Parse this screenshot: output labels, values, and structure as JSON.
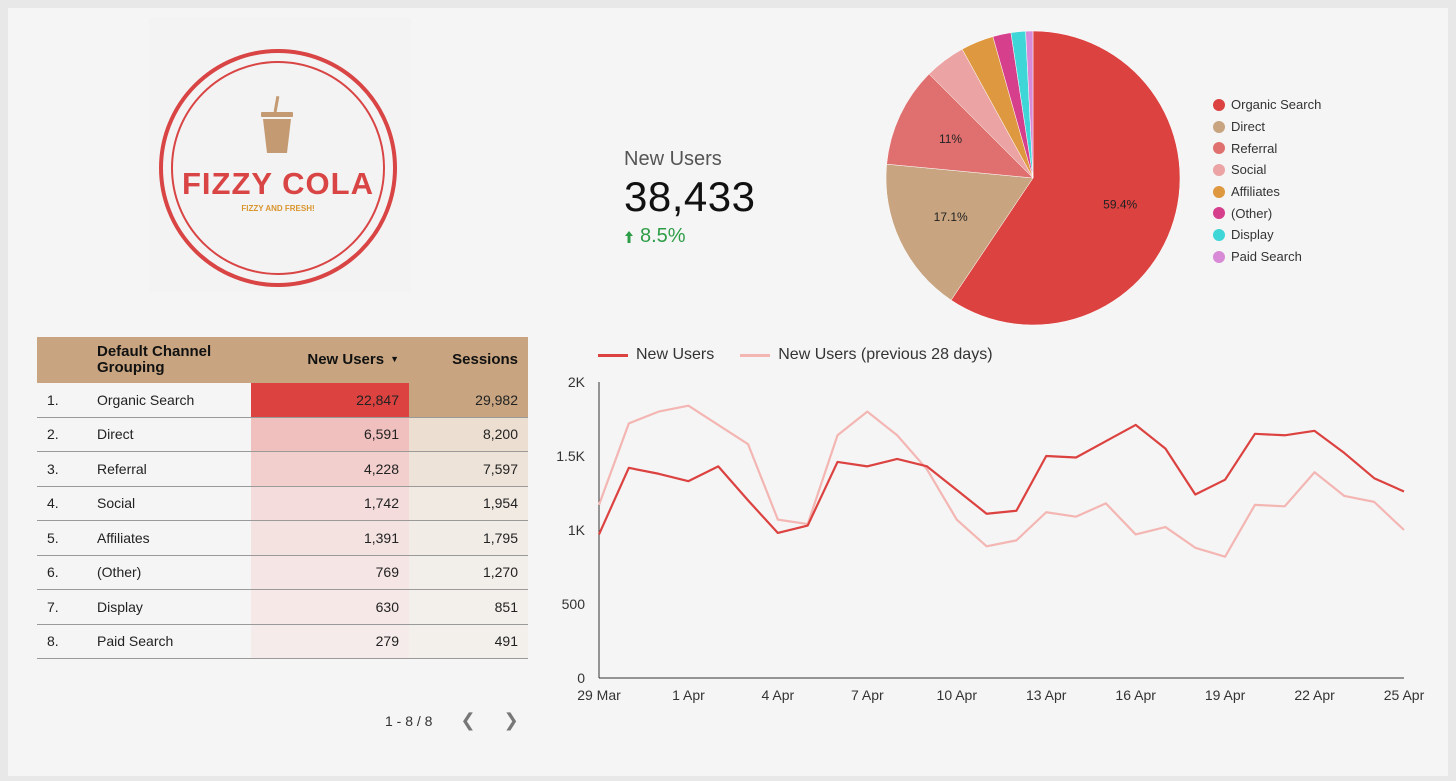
{
  "logo": {
    "brand_name": "FIZZY COLA",
    "tagline": "FIZZY AND FRESH!"
  },
  "scorecard": {
    "label": "New Users",
    "value": "38,433",
    "delta": "8.5%",
    "delta_icon": "arrow-up-icon"
  },
  "colors": {
    "primary_red": "#db4240",
    "tan": "#c8a580",
    "light_red": "#f4b6b3",
    "positive_green": "#2e9d47"
  },
  "table": {
    "headers": [
      "Default Channel Grouping",
      "New Users",
      "Sessions"
    ],
    "sort_icon": "sort-desc-icon",
    "rows": [
      {
        "idx": "1.",
        "channel": "Organic Search",
        "new_users": "22,847",
        "sessions": "29,982"
      },
      {
        "idx": "2.",
        "channel": "Direct",
        "new_users": "6,591",
        "sessions": "8,200"
      },
      {
        "idx": "3.",
        "channel": "Referral",
        "new_users": "4,228",
        "sessions": "7,597"
      },
      {
        "idx": "4.",
        "channel": "Social",
        "new_users": "1,742",
        "sessions": "1,954"
      },
      {
        "idx": "5.",
        "channel": "Affiliates",
        "new_users": "1,391",
        "sessions": "1,795"
      },
      {
        "idx": "6.",
        "channel": "(Other)",
        "new_users": "769",
        "sessions": "1,270"
      },
      {
        "idx": "7.",
        "channel": "Display",
        "new_users": "630",
        "sessions": "851"
      },
      {
        "idx": "8.",
        "channel": "Paid Search",
        "new_users": "279",
        "sessions": "491"
      }
    ],
    "pager_text": "1 - 8 / 8",
    "prev_icon": "chevron-left-icon",
    "next_icon": "chevron-right-icon"
  },
  "chart_data": [
    {
      "type": "pie",
      "categories": [
        "Organic Search",
        "Direct",
        "Referral",
        "Social",
        "Affiliates",
        "(Other)",
        "Display",
        "Paid Search"
      ],
      "values": [
        59.4,
        17.1,
        11.0,
        4.5,
        3.6,
        2.0,
        1.6,
        0.8
      ],
      "slice_labels": [
        "59.4%",
        "17.1%",
        "11%",
        "",
        "",
        "",
        "",
        ""
      ],
      "colors": [
        "#db4240",
        "#c8a580",
        "#e07070",
        "#eba3a3",
        "#de9840",
        "#d63f8c",
        "#3ed6d6",
        "#d98ad6"
      ],
      "legend_position": "right"
    },
    {
      "type": "line",
      "x": [
        "29 Mar",
        "30 Mar",
        "31 Mar",
        "1 Apr",
        "2 Apr",
        "3 Apr",
        "4 Apr",
        "5 Apr",
        "6 Apr",
        "7 Apr",
        "8 Apr",
        "9 Apr",
        "10 Apr",
        "11 Apr",
        "12 Apr",
        "13 Apr",
        "14 Apr",
        "15 Apr",
        "16 Apr",
        "17 Apr",
        "18 Apr",
        "19 Apr",
        "20 Apr",
        "21 Apr",
        "22 Apr",
        "23 Apr",
        "24 Apr",
        "25 Apr"
      ],
      "x_ticks": [
        "29 Mar",
        "1 Apr",
        "4 Apr",
        "7 Apr",
        "10 Apr",
        "13 Apr",
        "16 Apr",
        "19 Apr",
        "22 Apr",
        "25 Apr"
      ],
      "y_ticks": [
        "0",
        "500",
        "1K",
        "1.5K",
        "2K"
      ],
      "ylim": [
        0,
        2000
      ],
      "series": [
        {
          "name": "New Users",
          "color": "#db4240",
          "values": [
            970,
            1420,
            1380,
            1330,
            1430,
            1200,
            980,
            1030,
            1460,
            1430,
            1480,
            1430,
            1270,
            1110,
            1130,
            1500,
            1490,
            1600,
            1710,
            1550,
            1240,
            1340,
            1650,
            1640,
            1670,
            1520,
            1350,
            1260
          ]
        },
        {
          "name": "New Users (previous 28 days)",
          "color": "#f4b6b3",
          "values": [
            1170,
            1720,
            1800,
            1840,
            1710,
            1580,
            1070,
            1040,
            1640,
            1800,
            1640,
            1410,
            1070,
            890,
            930,
            1120,
            1090,
            1180,
            970,
            1020,
            880,
            820,
            1170,
            1160,
            1390,
            1230,
            1190,
            1000
          ]
        }
      ],
      "legend_position": "top-left",
      "grid": false
    }
  ]
}
